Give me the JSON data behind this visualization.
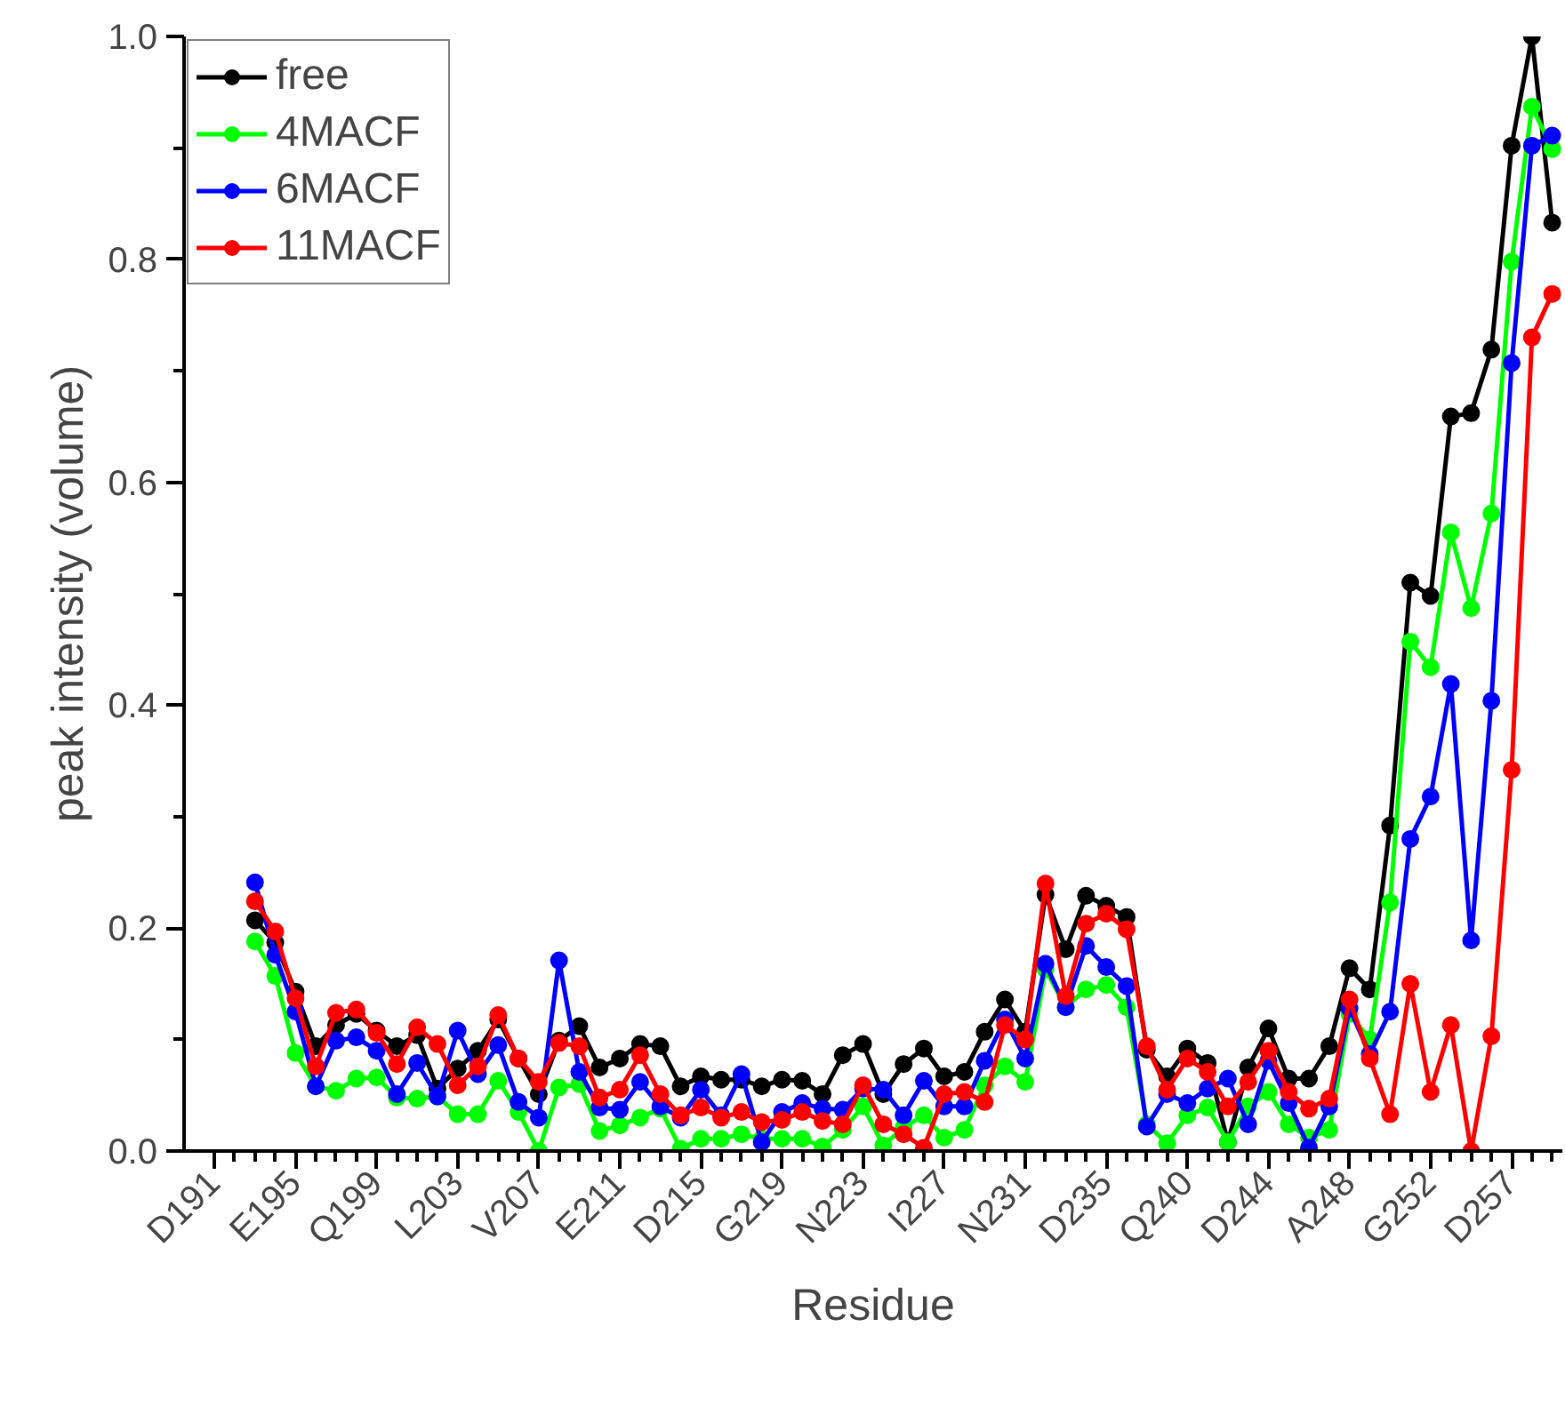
{
  "chart_data": {
    "type": "line",
    "xlabel": "Residue",
    "ylabel": "peak intensity (volume)",
    "categories": [
      "D191",
      null,
      null,
      null,
      "E195",
      null,
      null,
      null,
      "Q199",
      null,
      null,
      null,
      "L203",
      null,
      null,
      null,
      "V207",
      null,
      null,
      null,
      "E211",
      null,
      null,
      null,
      "D215",
      null,
      null,
      null,
      "G219",
      null,
      null,
      null,
      "N223",
      null,
      null,
      null,
      "I227",
      null,
      null,
      null,
      "N231",
      null,
      null,
      null,
      "D235",
      null,
      null,
      null,
      "Q240",
      null,
      null,
      null,
      "D244",
      null,
      null,
      null,
      "A248",
      null,
      null,
      null,
      "G252",
      null,
      null,
      null,
      "D257",
      null,
      null
    ],
    "ylim": [
      0,
      1
    ],
    "yticks": [
      {
        "value": 0,
        "label": "0.0"
      },
      {
        "value": 0.2,
        "label": "0.2"
      },
      {
        "value": 0.4,
        "label": "0.4"
      },
      {
        "value": 0.6,
        "label": "0.6"
      },
      {
        "value": 0.8,
        "label": "0.8"
      },
      {
        "value": 1,
        "label": "1.0"
      }
    ],
    "grid": false,
    "legend": "top left",
    "marker": "circle",
    "line_style": "solid",
    "series": [
      {
        "name": "free",
        "color": "#000000",
        "values": [
          null,
          null,
          0.207,
          0.187,
          0.143,
          0.094,
          0.113,
          0.123,
          0.108,
          0.094,
          0.104,
          0.056,
          0.074,
          0.09,
          0.118,
          0.083,
          0.051,
          0.099,
          0.112,
          0.075,
          0.083,
          0.096,
          0.094,
          0.058,
          0.067,
          0.064,
          0.064,
          0.058,
          0.064,
          0.063,
          0.051,
          0.086,
          0.096,
          0.051,
          0.078,
          0.092,
          0.067,
          0.071,
          0.107,
          0.136,
          0.107,
          0.23,
          0.181,
          0.229,
          0.22,
          0.21,
          0.091,
          0.067,
          0.092,
          0.079,
          0.008,
          0.075,
          0.11,
          0.065,
          0.065,
          0.094,
          0.164,
          0.145,
          0.292,
          0.51,
          0.498,
          0.659,
          0.662,
          0.719,
          0.902,
          1.0,
          0.833
        ]
      },
      {
        "name": "4MACF",
        "color": "#00ff00",
        "values": [
          null,
          null,
          0.188,
          0.157,
          0.088,
          0.058,
          0.054,
          0.065,
          0.066,
          0.048,
          0.047,
          0.049,
          0.033,
          0.033,
          0.063,
          0.035,
          0.0,
          0.057,
          0.06,
          0.018,
          0.023,
          0.03,
          0.038,
          0.002,
          0.011,
          0.011,
          0.015,
          0.011,
          0.011,
          0.011,
          0.004,
          0.019,
          0.04,
          0.005,
          0.021,
          0.032,
          0.012,
          0.019,
          0.059,
          0.076,
          0.062,
          0.163,
          0.129,
          0.145,
          0.149,
          0.129,
          0.024,
          0.007,
          0.032,
          0.039,
          0.008,
          0.04,
          0.053,
          0.024,
          0.012,
          0.019,
          0.123,
          0.1,
          0.223,
          0.457,
          0.434,
          0.555,
          0.487,
          0.572,
          0.798,
          0.937,
          0.899
        ]
      },
      {
        "name": "6MACF",
        "color": "#0000ff",
        "values": [
          null,
          null,
          0.241,
          0.176,
          0.125,
          0.058,
          0.099,
          0.102,
          0.09,
          0.051,
          0.079,
          0.049,
          0.108,
          0.069,
          0.095,
          0.044,
          0.03,
          0.171,
          0.071,
          0.039,
          0.037,
          0.062,
          0.04,
          0.03,
          0.055,
          0.032,
          0.069,
          0.008,
          0.035,
          0.043,
          0.038,
          0.037,
          0.056,
          0.055,
          0.032,
          0.063,
          0.04,
          0.04,
          0.081,
          0.118,
          0.083,
          0.168,
          0.129,
          0.184,
          0.165,
          0.148,
          0.022,
          0.051,
          0.043,
          0.056,
          0.065,
          0.024,
          0.081,
          0.043,
          0.003,
          0.04,
          0.128,
          0.087,
          0.125,
          0.28,
          0.318,
          0.419,
          0.189,
          0.404,
          0.707,
          0.902,
          0.911
        ]
      },
      {
        "name": "11MACF",
        "color": "#ff0000",
        "values": [
          null,
          null,
          0.224,
          0.197,
          0.137,
          0.076,
          0.124,
          0.127,
          0.106,
          0.078,
          0.111,
          0.096,
          0.059,
          0.076,
          0.122,
          0.083,
          0.062,
          0.097,
          0.094,
          0.048,
          0.055,
          0.086,
          0.051,
          0.032,
          0.039,
          0.03,
          0.035,
          0.026,
          0.028,
          0.035,
          0.027,
          0.024,
          0.059,
          0.024,
          0.015,
          0.003,
          0.051,
          0.053,
          0.044,
          0.113,
          0.1,
          0.24,
          0.139,
          0.204,
          0.213,
          0.199,
          0.094,
          0.055,
          0.083,
          0.071,
          0.04,
          0.062,
          0.09,
          0.053,
          0.038,
          0.047,
          0.136,
          0.083,
          0.033,
          0.15,
          0.053,
          0.113,
          0.0,
          0.103,
          0.342,
          0.73,
          0.769
        ]
      }
    ]
  }
}
